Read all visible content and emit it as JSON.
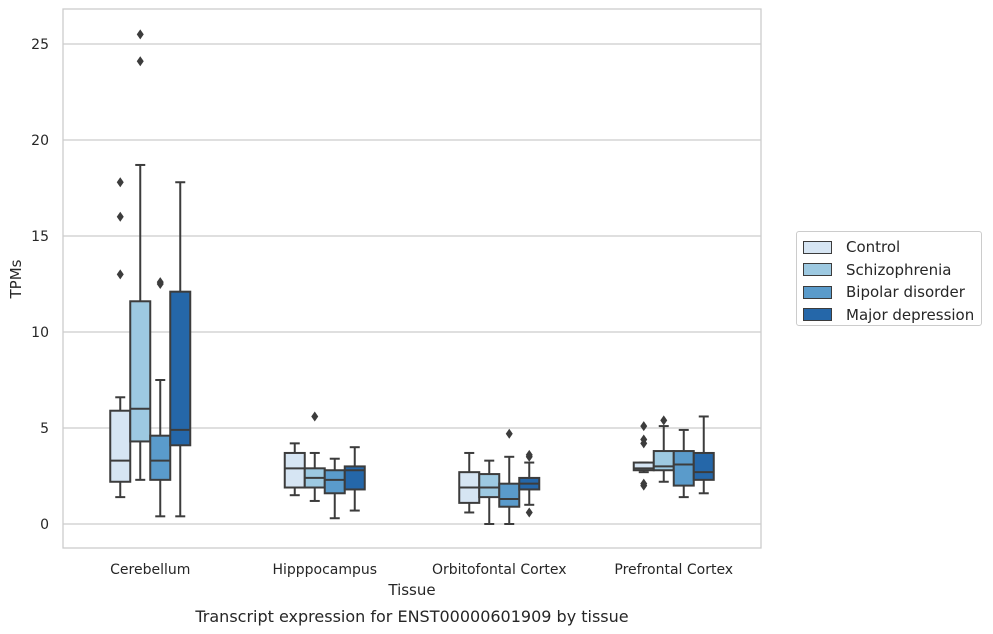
{
  "chart_data": {
    "type": "box",
    "title": "Transcript expression for ENST00000601909 by tissue",
    "xlabel": "Tissue",
    "ylabel": "TPMs",
    "ylim": [
      -1.2,
      26.8
    ],
    "yticks": [
      0,
      5,
      10,
      15,
      20,
      25
    ],
    "grid": "horizontal",
    "legend_position": "right",
    "categories": [
      "Cerebellum",
      "Hipppocampus",
      "Orbitofontal Cortex",
      "Prefrontal Cortex"
    ],
    "series": [
      {
        "name": "Control",
        "color": "#d6e5f3",
        "boxes": [
          {
            "whisker_low": 1.4,
            "q1": 2.2,
            "median": 3.3,
            "q3": 5.9,
            "whisker_high": 6.6,
            "outliers": [
              13.0,
              16.0,
              17.8
            ]
          },
          {
            "whisker_low": 1.5,
            "q1": 1.9,
            "median": 2.9,
            "q3": 3.7,
            "whisker_high": 4.2,
            "outliers": []
          },
          {
            "whisker_low": 0.6,
            "q1": 1.1,
            "median": 1.9,
            "q3": 2.7,
            "whisker_high": 3.7,
            "outliers": []
          },
          {
            "whisker_low": 2.7,
            "q1": 2.8,
            "median": 2.9,
            "q3": 3.2,
            "whisker_high": 3.2,
            "outliers": [
              2.0,
              2.1,
              4.2,
              4.4,
              5.1
            ]
          }
        ]
      },
      {
        "name": "Schizophrenia",
        "color": "#9dc9e1",
        "boxes": [
          {
            "whisker_low": 2.3,
            "q1": 4.3,
            "median": 6.0,
            "q3": 11.6,
            "whisker_high": 18.7,
            "outliers": [
              24.1,
              25.5
            ]
          },
          {
            "whisker_low": 1.2,
            "q1": 1.9,
            "median": 2.4,
            "q3": 2.9,
            "whisker_high": 3.7,
            "outliers": [
              5.6
            ]
          },
          {
            "whisker_low": 0.0,
            "q1": 1.4,
            "median": 1.9,
            "q3": 2.6,
            "whisker_high": 3.3,
            "outliers": []
          },
          {
            "whisker_low": 2.2,
            "q1": 2.8,
            "median": 3.0,
            "q3": 3.8,
            "whisker_high": 5.1,
            "outliers": [
              5.4
            ]
          }
        ]
      },
      {
        "name": "Bipolar disorder",
        "color": "#5a9bcb",
        "boxes": [
          {
            "whisker_low": 0.4,
            "q1": 2.3,
            "median": 3.3,
            "q3": 4.6,
            "whisker_high": 7.5,
            "outliers": [
              12.5,
              12.6
            ]
          },
          {
            "whisker_low": 0.3,
            "q1": 1.6,
            "median": 2.3,
            "q3": 2.8,
            "whisker_high": 3.4,
            "outliers": []
          },
          {
            "whisker_low": 0.0,
            "q1": 0.9,
            "median": 1.3,
            "q3": 2.1,
            "whisker_high": 3.5,
            "outliers": [
              4.7
            ]
          },
          {
            "whisker_low": 1.4,
            "q1": 2.0,
            "median": 3.1,
            "q3": 3.8,
            "whisker_high": 4.9,
            "outliers": []
          }
        ]
      },
      {
        "name": "Major depression",
        "color": "#2567a9",
        "boxes": [
          {
            "whisker_low": 0.4,
            "q1": 4.1,
            "median": 4.9,
            "q3": 12.1,
            "whisker_high": 17.8,
            "outliers": []
          },
          {
            "whisker_low": 0.7,
            "q1": 1.8,
            "median": 2.8,
            "q3": 3.0,
            "whisker_high": 4.0,
            "outliers": []
          },
          {
            "whisker_low": 1.0,
            "q1": 1.8,
            "median": 2.1,
            "q3": 2.4,
            "whisker_high": 3.2,
            "outliers": [
              0.6,
              3.5,
              3.6
            ]
          },
          {
            "whisker_low": 1.6,
            "q1": 2.3,
            "median": 2.7,
            "q3": 3.7,
            "whisker_high": 5.6,
            "outliers": []
          }
        ]
      }
    ]
  }
}
